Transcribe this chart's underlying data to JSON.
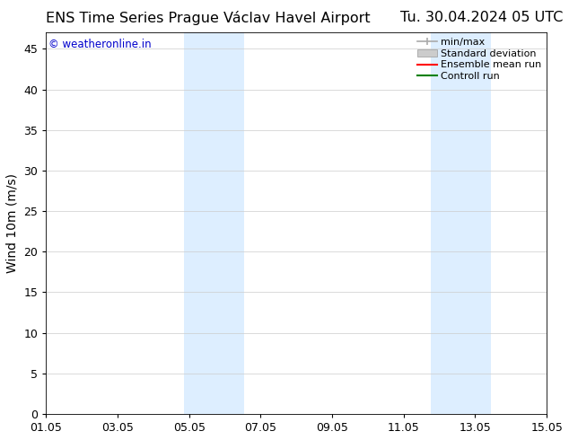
{
  "title_left": "ENS Time Series Prague Václav Havel Airport",
  "title_right": "Tu. 30.04.2024 05 UTC",
  "ylabel": "Wind 10m (m/s)",
  "watermark": "© weatheronline.in",
  "watermark_color": "#0000cc",
  "xlim_start": 0,
  "xlim_end": 14,
  "ylim_min": 0,
  "ylim_max": 47,
  "yticks": [
    0,
    5,
    10,
    15,
    20,
    25,
    30,
    35,
    40,
    45
  ],
  "xtick_labels": [
    "01.05",
    "03.05",
    "05.05",
    "07.05",
    "09.05",
    "11.05",
    "13.05",
    "15.05"
  ],
  "xtick_positions": [
    0,
    2,
    4,
    6,
    8,
    10,
    12,
    14
  ],
  "shaded_regions": [
    {
      "x_start": 3.85,
      "x_end": 5.55
    },
    {
      "x_start": 10.75,
      "x_end": 12.45
    }
  ],
  "shaded_color": "#ddeeff",
  "background_color": "#ffffff",
  "legend_items": [
    {
      "label": "min/max",
      "color": "#aaaaaa",
      "type": "minmax"
    },
    {
      "label": "Standard deviation",
      "color": "#cccccc",
      "type": "band"
    },
    {
      "label": "Ensemble mean run",
      "color": "#ff0000",
      "type": "line"
    },
    {
      "label": "Controll run",
      "color": "#008000",
      "type": "line"
    }
  ],
  "grid_color": "#cccccc",
  "tick_color": "#000000",
  "title_fontsize": 11.5,
  "label_fontsize": 10,
  "watermark_fontsize": 8.5,
  "legend_fontsize": 8
}
